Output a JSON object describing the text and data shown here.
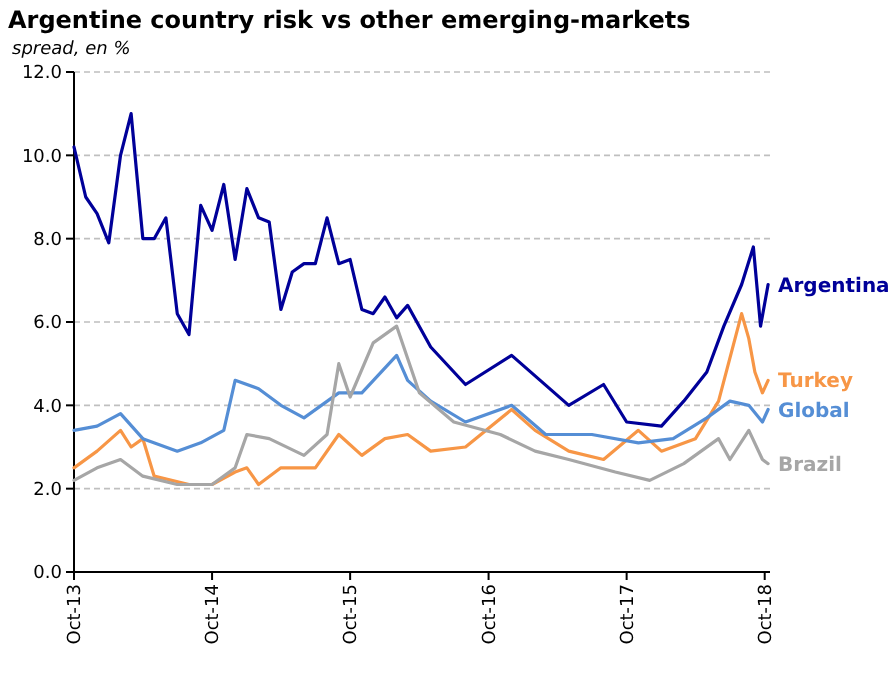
{
  "chart_data": {
    "type": "line",
    "title": "Argentine country risk vs other emerging-markets",
    "subtitle": "spread, en %",
    "xlim": [
      "2013-10-01",
      "2018-10-15"
    ],
    "xticks": [
      {
        "value": "2013-10-01",
        "label": "Oct-13"
      },
      {
        "value": "2014-10-01",
        "label": "Oct-14"
      },
      {
        "value": "2015-10-01",
        "label": "Oct-15"
      },
      {
        "value": "2016-10-01",
        "label": "Oct-16"
      },
      {
        "value": "2017-10-01",
        "label": "Oct-17"
      },
      {
        "value": "2018-10-01",
        "label": "Oct-18"
      }
    ],
    "ylim": [
      0,
      12
    ],
    "yticks": [
      {
        "value": 0,
        "label": "0.0"
      },
      {
        "value": 2,
        "label": "2.0"
      },
      {
        "value": 4,
        "label": "4.0"
      },
      {
        "value": 6,
        "label": "6.0"
      },
      {
        "value": 8,
        "label": "8.0"
      },
      {
        "value": 10,
        "label": "10.0"
      },
      {
        "value": 12,
        "label": "12.0"
      }
    ],
    "grid": "y",
    "legend": "right",
    "line_style": "solid",
    "marker": "none",
    "series": [
      {
        "name": "Argentina",
        "color": "#000099",
        "x": [
          "2013-10-01",
          "2013-11-01",
          "2013-12-01",
          "2014-01-01",
          "2014-02-01",
          "2014-03-01",
          "2014-04-01",
          "2014-05-01",
          "2014-06-01",
          "2014-07-01",
          "2014-08-01",
          "2014-09-01",
          "2014-10-01",
          "2014-11-01",
          "2014-12-01",
          "2015-01-01",
          "2015-02-01",
          "2015-03-01",
          "2015-04-01",
          "2015-05-01",
          "2015-06-01",
          "2015-07-01",
          "2015-08-01",
          "2015-09-01",
          "2015-10-01",
          "2015-11-01",
          "2015-12-01",
          "2016-01-01",
          "2016-02-01",
          "2016-03-01",
          "2016-05-01",
          "2016-08-01",
          "2016-12-01",
          "2017-05-01",
          "2017-08-01",
          "2017-10-01",
          "2018-01-01",
          "2018-03-01",
          "2018-05-01",
          "2018-06-15",
          "2018-08-01",
          "2018-09-01",
          "2018-09-20",
          "2018-10-10"
        ],
        "values": [
          10.2,
          9.0,
          8.6,
          7.9,
          10.0,
          11.0,
          8.0,
          8.0,
          8.5,
          6.2,
          5.7,
          8.8,
          8.2,
          9.3,
          7.5,
          9.2,
          8.5,
          8.4,
          6.3,
          7.2,
          7.4,
          7.4,
          8.5,
          7.4,
          7.5,
          6.3,
          6.2,
          6.6,
          6.1,
          6.4,
          5.4,
          4.5,
          5.2,
          4.0,
          4.5,
          3.6,
          3.5,
          4.1,
          4.8,
          5.9,
          6.9,
          7.8,
          5.9,
          6.9
        ]
      },
      {
        "name": "Turkey",
        "color": "#f79646",
        "x": [
          "2013-10-01",
          "2013-12-01",
          "2014-02-01",
          "2014-03-01",
          "2014-04-01",
          "2014-05-01",
          "2014-08-01",
          "2014-10-01",
          "2014-12-01",
          "2015-01-01",
          "2015-02-01",
          "2015-04-01",
          "2015-07-01",
          "2015-09-01",
          "2015-11-01",
          "2016-01-01",
          "2016-03-01",
          "2016-05-01",
          "2016-08-01",
          "2016-12-01",
          "2017-02-01",
          "2017-05-01",
          "2017-08-01",
          "2017-11-01",
          "2018-01-01",
          "2018-04-01",
          "2018-06-01",
          "2018-08-01",
          "2018-08-20",
          "2018-09-05",
          "2018-09-25",
          "2018-10-10"
        ],
        "values": [
          2.5,
          2.9,
          3.4,
          3.0,
          3.2,
          2.3,
          2.1,
          2.1,
          2.4,
          2.5,
          2.1,
          2.5,
          2.5,
          3.3,
          2.8,
          3.2,
          3.3,
          2.9,
          3.0,
          3.9,
          3.4,
          2.9,
          2.7,
          3.4,
          2.9,
          3.2,
          4.1,
          6.2,
          5.6,
          4.8,
          4.3,
          4.6
        ]
      },
      {
        "name": "Global",
        "color": "#558ed5",
        "x": [
          "2013-10-01",
          "2013-12-01",
          "2014-02-01",
          "2014-04-01",
          "2014-07-01",
          "2014-09-01",
          "2014-11-01",
          "2014-12-01",
          "2015-02-01",
          "2015-04-01",
          "2015-06-01",
          "2015-09-01",
          "2015-11-01",
          "2016-02-01",
          "2016-03-01",
          "2016-05-01",
          "2016-08-01",
          "2016-12-01",
          "2017-03-01",
          "2017-07-01",
          "2017-11-01",
          "2018-02-01",
          "2018-05-01",
          "2018-07-01",
          "2018-08-20",
          "2018-09-25",
          "2018-10-10"
        ],
        "values": [
          3.4,
          3.5,
          3.8,
          3.2,
          2.9,
          3.1,
          3.4,
          4.6,
          4.4,
          4.0,
          3.7,
          4.3,
          4.3,
          5.2,
          4.6,
          4.1,
          3.6,
          4.0,
          3.3,
          3.3,
          3.1,
          3.2,
          3.7,
          4.1,
          4.0,
          3.6,
          3.9
        ]
      },
      {
        "name": "Brazil",
        "color": "#a6a6a6",
        "x": [
          "2013-10-01",
          "2013-12-01",
          "2014-02-01",
          "2014-04-01",
          "2014-07-01",
          "2014-10-01",
          "2014-12-01",
          "2015-01-01",
          "2015-03-01",
          "2015-06-01",
          "2015-08-01",
          "2015-09-01",
          "2015-10-01",
          "2015-12-01",
          "2016-02-01",
          "2016-04-01",
          "2016-07-01",
          "2016-11-01",
          "2017-02-01",
          "2017-05-01",
          "2017-09-01",
          "2017-12-01",
          "2018-03-01",
          "2018-06-01",
          "2018-07-01",
          "2018-08-20",
          "2018-09-25",
          "2018-10-10"
        ],
        "values": [
          2.2,
          2.5,
          2.7,
          2.3,
          2.1,
          2.1,
          2.5,
          3.3,
          3.2,
          2.8,
          3.3,
          5.0,
          4.2,
          5.5,
          5.9,
          4.3,
          3.6,
          3.3,
          2.9,
          2.7,
          2.4,
          2.2,
          2.6,
          3.2,
          2.7,
          3.4,
          2.7,
          2.6
        ]
      }
    ]
  }
}
